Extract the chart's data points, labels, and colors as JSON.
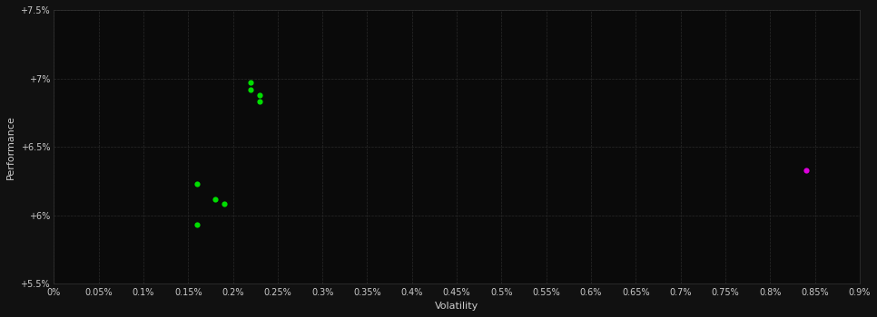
{
  "bg_color": "#111111",
  "plot_bg_color": "#0a0a0a",
  "grid_color": "#2a2a2a",
  "text_color": "#cccccc",
  "xlabel": "Volatility",
  "ylabel": "Performance",
  "xlim": [
    0.0,
    0.009
  ],
  "ylim": [
    0.055,
    0.075
  ],
  "yticks": [
    0.055,
    0.06,
    0.065,
    0.07,
    0.075
  ],
  "ytick_labels": [
    "+5.5%",
    "+6%",
    "+6.5%",
    "+7%",
    "+7.5%"
  ],
  "xticks": [
    0.0,
    0.0005,
    0.001,
    0.0015,
    0.002,
    0.0025,
    0.003,
    0.0035,
    0.004,
    0.0045,
    0.005,
    0.0055,
    0.006,
    0.0065,
    0.007,
    0.0075,
    0.008,
    0.0085,
    0.009
  ],
  "xtick_labels": [
    "0%",
    "0.05%",
    "0.1%",
    "0.15%",
    "0.2%",
    "0.25%",
    "0.3%",
    "0.35%",
    "0.4%",
    "0.45%",
    "0.5%",
    "0.55%",
    "0.6%",
    "0.65%",
    "0.7%",
    "0.75%",
    "0.8%",
    "0.85%",
    "0.9%"
  ],
  "green_points": [
    [
      0.0022,
      0.0697
    ],
    [
      0.0022,
      0.06915
    ],
    [
      0.0023,
      0.06875
    ],
    [
      0.0023,
      0.0683
    ],
    [
      0.0016,
      0.0623
    ],
    [
      0.0018,
      0.0612
    ],
    [
      0.0019,
      0.06085
    ],
    [
      0.0016,
      0.0593
    ]
  ],
  "magenta_points": [
    [
      0.0084,
      0.0633
    ]
  ],
  "green_color": "#00dd00",
  "magenta_color": "#dd00dd",
  "marker_size": 20
}
